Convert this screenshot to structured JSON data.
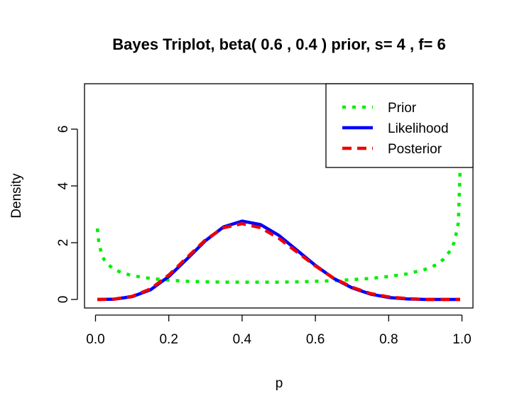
{
  "chart_data": {
    "type": "line",
    "title": "Bayes Triplot, beta( 0.6 , 0.4 ) prior, s= 4 , f= 6",
    "xlabel": "p",
    "ylabel": "Density",
    "xlim": [
      -0.03,
      1.03
    ],
    "ylim": [
      -0.3,
      7.6
    ],
    "xticks": [
      0.0,
      0.2,
      0.4,
      0.6,
      0.8,
      1.0
    ],
    "xtick_labels": [
      "0.0",
      "0.2",
      "0.4",
      "0.6",
      "0.8",
      "1.0"
    ],
    "yticks": [
      0,
      2,
      4,
      6
    ],
    "ytick_labels": [
      "0",
      "2",
      "4",
      "6"
    ],
    "grid": false,
    "legend_position": "top-right",
    "series": [
      {
        "name": "Prior",
        "color": "#00ee00",
        "style": "dotted",
        "x": [
          0.005,
          0.01,
          0.02,
          0.03,
          0.05,
          0.075,
          0.1,
          0.15,
          0.2,
          0.25,
          0.3,
          0.35,
          0.4,
          0.45,
          0.5,
          0.55,
          0.6,
          0.65,
          0.7,
          0.75,
          0.8,
          0.85,
          0.9,
          0.93,
          0.95,
          0.97,
          0.98,
          0.99,
          0.995
        ],
        "y": [
          2.5,
          1.92,
          1.48,
          1.28,
          1.06,
          0.93,
          0.84,
          0.74,
          0.68,
          0.64,
          0.62,
          0.61,
          0.61,
          0.61,
          0.61,
          0.62,
          0.64,
          0.66,
          0.7,
          0.74,
          0.81,
          0.9,
          1.06,
          1.22,
          1.42,
          1.75,
          2.05,
          2.7,
          4.6
        ]
      },
      {
        "name": "Likelihood",
        "color": "#0000ff",
        "style": "solid",
        "x": [
          0.005,
          0.05,
          0.1,
          0.15,
          0.2,
          0.25,
          0.3,
          0.35,
          0.4,
          0.45,
          0.5,
          0.55,
          0.6,
          0.65,
          0.7,
          0.75,
          0.8,
          0.85,
          0.9,
          0.95,
          0.995
        ],
        "y": [
          0.0,
          0.01,
          0.1,
          0.34,
          0.81,
          1.43,
          2.07,
          2.56,
          2.76,
          2.64,
          2.26,
          1.73,
          1.2,
          0.74,
          0.41,
          0.19,
          0.07,
          0.02,
          0.0,
          0.0,
          0.0
        ]
      },
      {
        "name": "Posterior",
        "color": "#ee0000",
        "style": "dashed",
        "x": [
          0.005,
          0.05,
          0.1,
          0.15,
          0.2,
          0.25,
          0.3,
          0.35,
          0.4,
          0.45,
          0.5,
          0.55,
          0.6,
          0.65,
          0.7,
          0.75,
          0.8,
          0.85,
          0.9,
          0.95,
          0.995
        ],
        "y": [
          0.0,
          0.01,
          0.11,
          0.37,
          0.86,
          1.48,
          2.1,
          2.53,
          2.67,
          2.53,
          2.16,
          1.67,
          1.18,
          0.75,
          0.43,
          0.21,
          0.09,
          0.03,
          0.0,
          0.0,
          0.0
        ]
      }
    ]
  }
}
